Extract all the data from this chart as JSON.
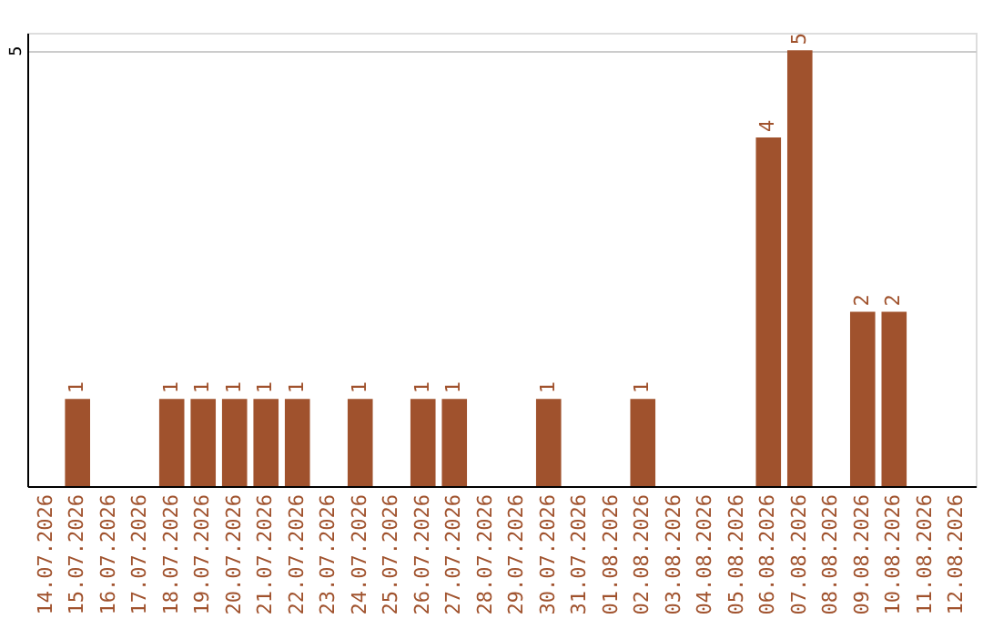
{
  "chart_data": {
    "type": "bar",
    "categories": [
      "14.07.2026",
      "15.07.2026",
      "16.07.2026",
      "17.07.2026",
      "18.07.2026",
      "19.07.2026",
      "20.07.2026",
      "21.07.2026",
      "22.07.2026",
      "23.07.2026",
      "24.07.2026",
      "25.07.2026",
      "26.07.2026",
      "27.07.2026",
      "28.07.2026",
      "29.07.2026",
      "30.07.2026",
      "31.07.2026",
      "01.08.2026",
      "02.08.2026",
      "03.08.2026",
      "04.08.2026",
      "05.08.2026",
      "06.08.2026",
      "07.08.2026",
      "08.08.2026",
      "09.08.2026",
      "10.08.2026",
      "11.08.2026",
      "12.08.2026"
    ],
    "values": [
      null,
      1,
      null,
      null,
      1,
      1,
      1,
      1,
      1,
      null,
      1,
      null,
      1,
      1,
      null,
      null,
      1,
      null,
      null,
      1,
      null,
      null,
      null,
      4,
      5,
      null,
      2,
      2,
      null,
      null
    ],
    "color": "#a0522d",
    "ylim": [
      0,
      5.2
    ],
    "yticks": [
      5
    ],
    "grid": "y",
    "data_labels": true
  }
}
